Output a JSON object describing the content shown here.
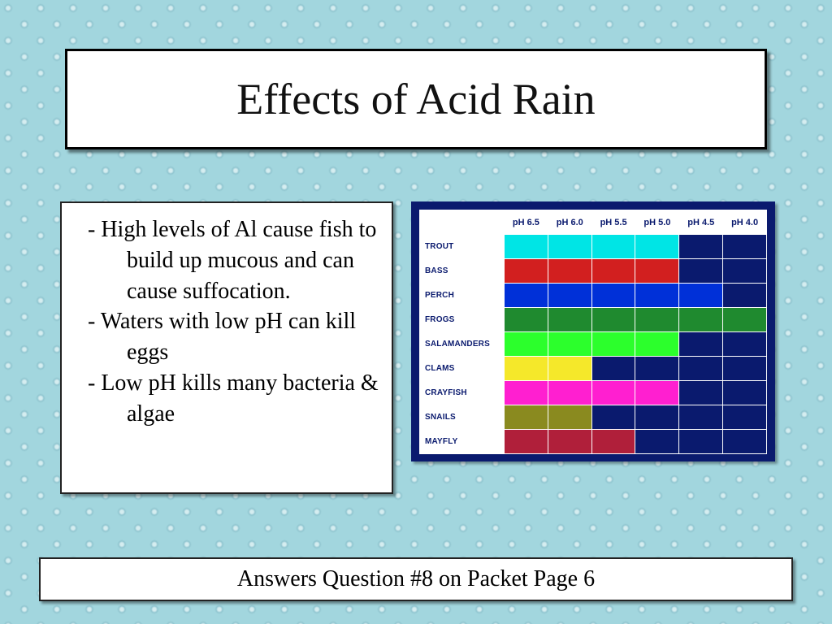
{
  "title": "Effects of Acid Rain",
  "bullets": [
    "- High levels of Al cause fish to build up mucous and can cause suffocation.",
    "- Waters with low pH can kill eggs",
    "- Low pH kills many bacteria & algae"
  ],
  "footer": "Answers Question #8  on Packet Page 6",
  "chart": {
    "type": "table-heatmap",
    "background_color": "#0a1a6e",
    "cell_border_color": "#ffffff",
    "header_bg": "#ffffff",
    "header_fg": "#0a1a6e",
    "header_fontsize": 11,
    "rowlabel_fontsize": 10,
    "columns": [
      "pH 6.5",
      "pH 6.0",
      "pH 5.5",
      "pH 5.0",
      "pH 4.5",
      "pH 4.0"
    ],
    "rows": [
      {
        "label": "TROUT",
        "cells": [
          "#00e5e5",
          "#00e5e5",
          "#00e5e5",
          "#00e5e5",
          null,
          null
        ]
      },
      {
        "label": "BASS",
        "cells": [
          "#d21f1f",
          "#d21f1f",
          "#d21f1f",
          "#d21f1f",
          null,
          null
        ]
      },
      {
        "label": "PERCH",
        "cells": [
          "#0030d8",
          "#0030d8",
          "#0030d8",
          "#0030d8",
          "#0030d8",
          null
        ]
      },
      {
        "label": "FROGS",
        "cells": [
          "#1f8a2f",
          "#1f8a2f",
          "#1f8a2f",
          "#1f8a2f",
          "#1f8a2f",
          "#1f8a2f"
        ]
      },
      {
        "label": "SALAMANDERS",
        "cells": [
          "#2cff2c",
          "#2cff2c",
          "#2cff2c",
          "#2cff2c",
          null,
          null
        ]
      },
      {
        "label": "CLAMS",
        "cells": [
          "#f5e82a",
          "#f5e82a",
          null,
          null,
          null,
          null
        ]
      },
      {
        "label": "CRAYFISH",
        "cells": [
          "#ff1fd0",
          "#ff1fd0",
          "#ff1fd0",
          "#ff1fd0",
          null,
          null
        ]
      },
      {
        "label": "SNAILS",
        "cells": [
          "#8a8a1f",
          "#8a8a1f",
          null,
          null,
          null,
          null
        ]
      },
      {
        "label": "MAYFLY",
        "cells": [
          "#b01f3a",
          "#b01f3a",
          "#b01f3a",
          null,
          null,
          null
        ]
      }
    ]
  }
}
